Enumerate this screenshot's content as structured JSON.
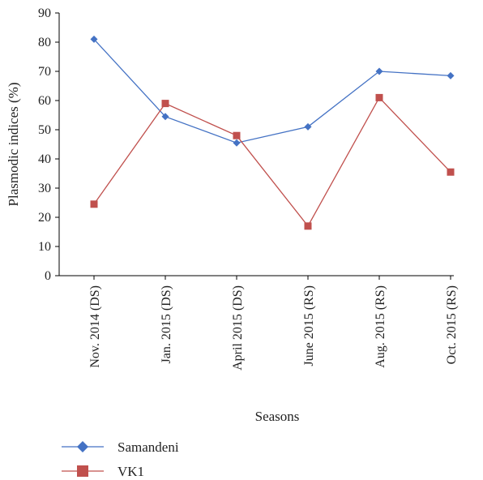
{
  "chart_data": {
    "type": "line",
    "title": "",
    "xlabel": "Seasons",
    "ylabel": "Plasmodic indices (%)",
    "ylim": [
      0,
      90
    ],
    "yticks": [
      0,
      10,
      20,
      30,
      40,
      50,
      60,
      70,
      80,
      90
    ],
    "grid": false,
    "legend_position": "bottom-left",
    "categories": [
      "Nov. 2014 (DS)",
      "Jan. 2015 (DS)",
      "April 2015 (DS)",
      "June 2015 (RS)",
      "Aug. 2015 (RS)",
      "Oct. 2015 (RS)"
    ],
    "series": [
      {
        "name": "Samandeni",
        "values": [
          81,
          54.5,
          45.5,
          51,
          70,
          68.5
        ],
        "color": "#4472c4",
        "marker": "diamond"
      },
      {
        "name": "VK1",
        "values": [
          24.5,
          59,
          48,
          17,
          61,
          35.5
        ],
        "color": "#c0504d",
        "marker": "square"
      }
    ]
  }
}
